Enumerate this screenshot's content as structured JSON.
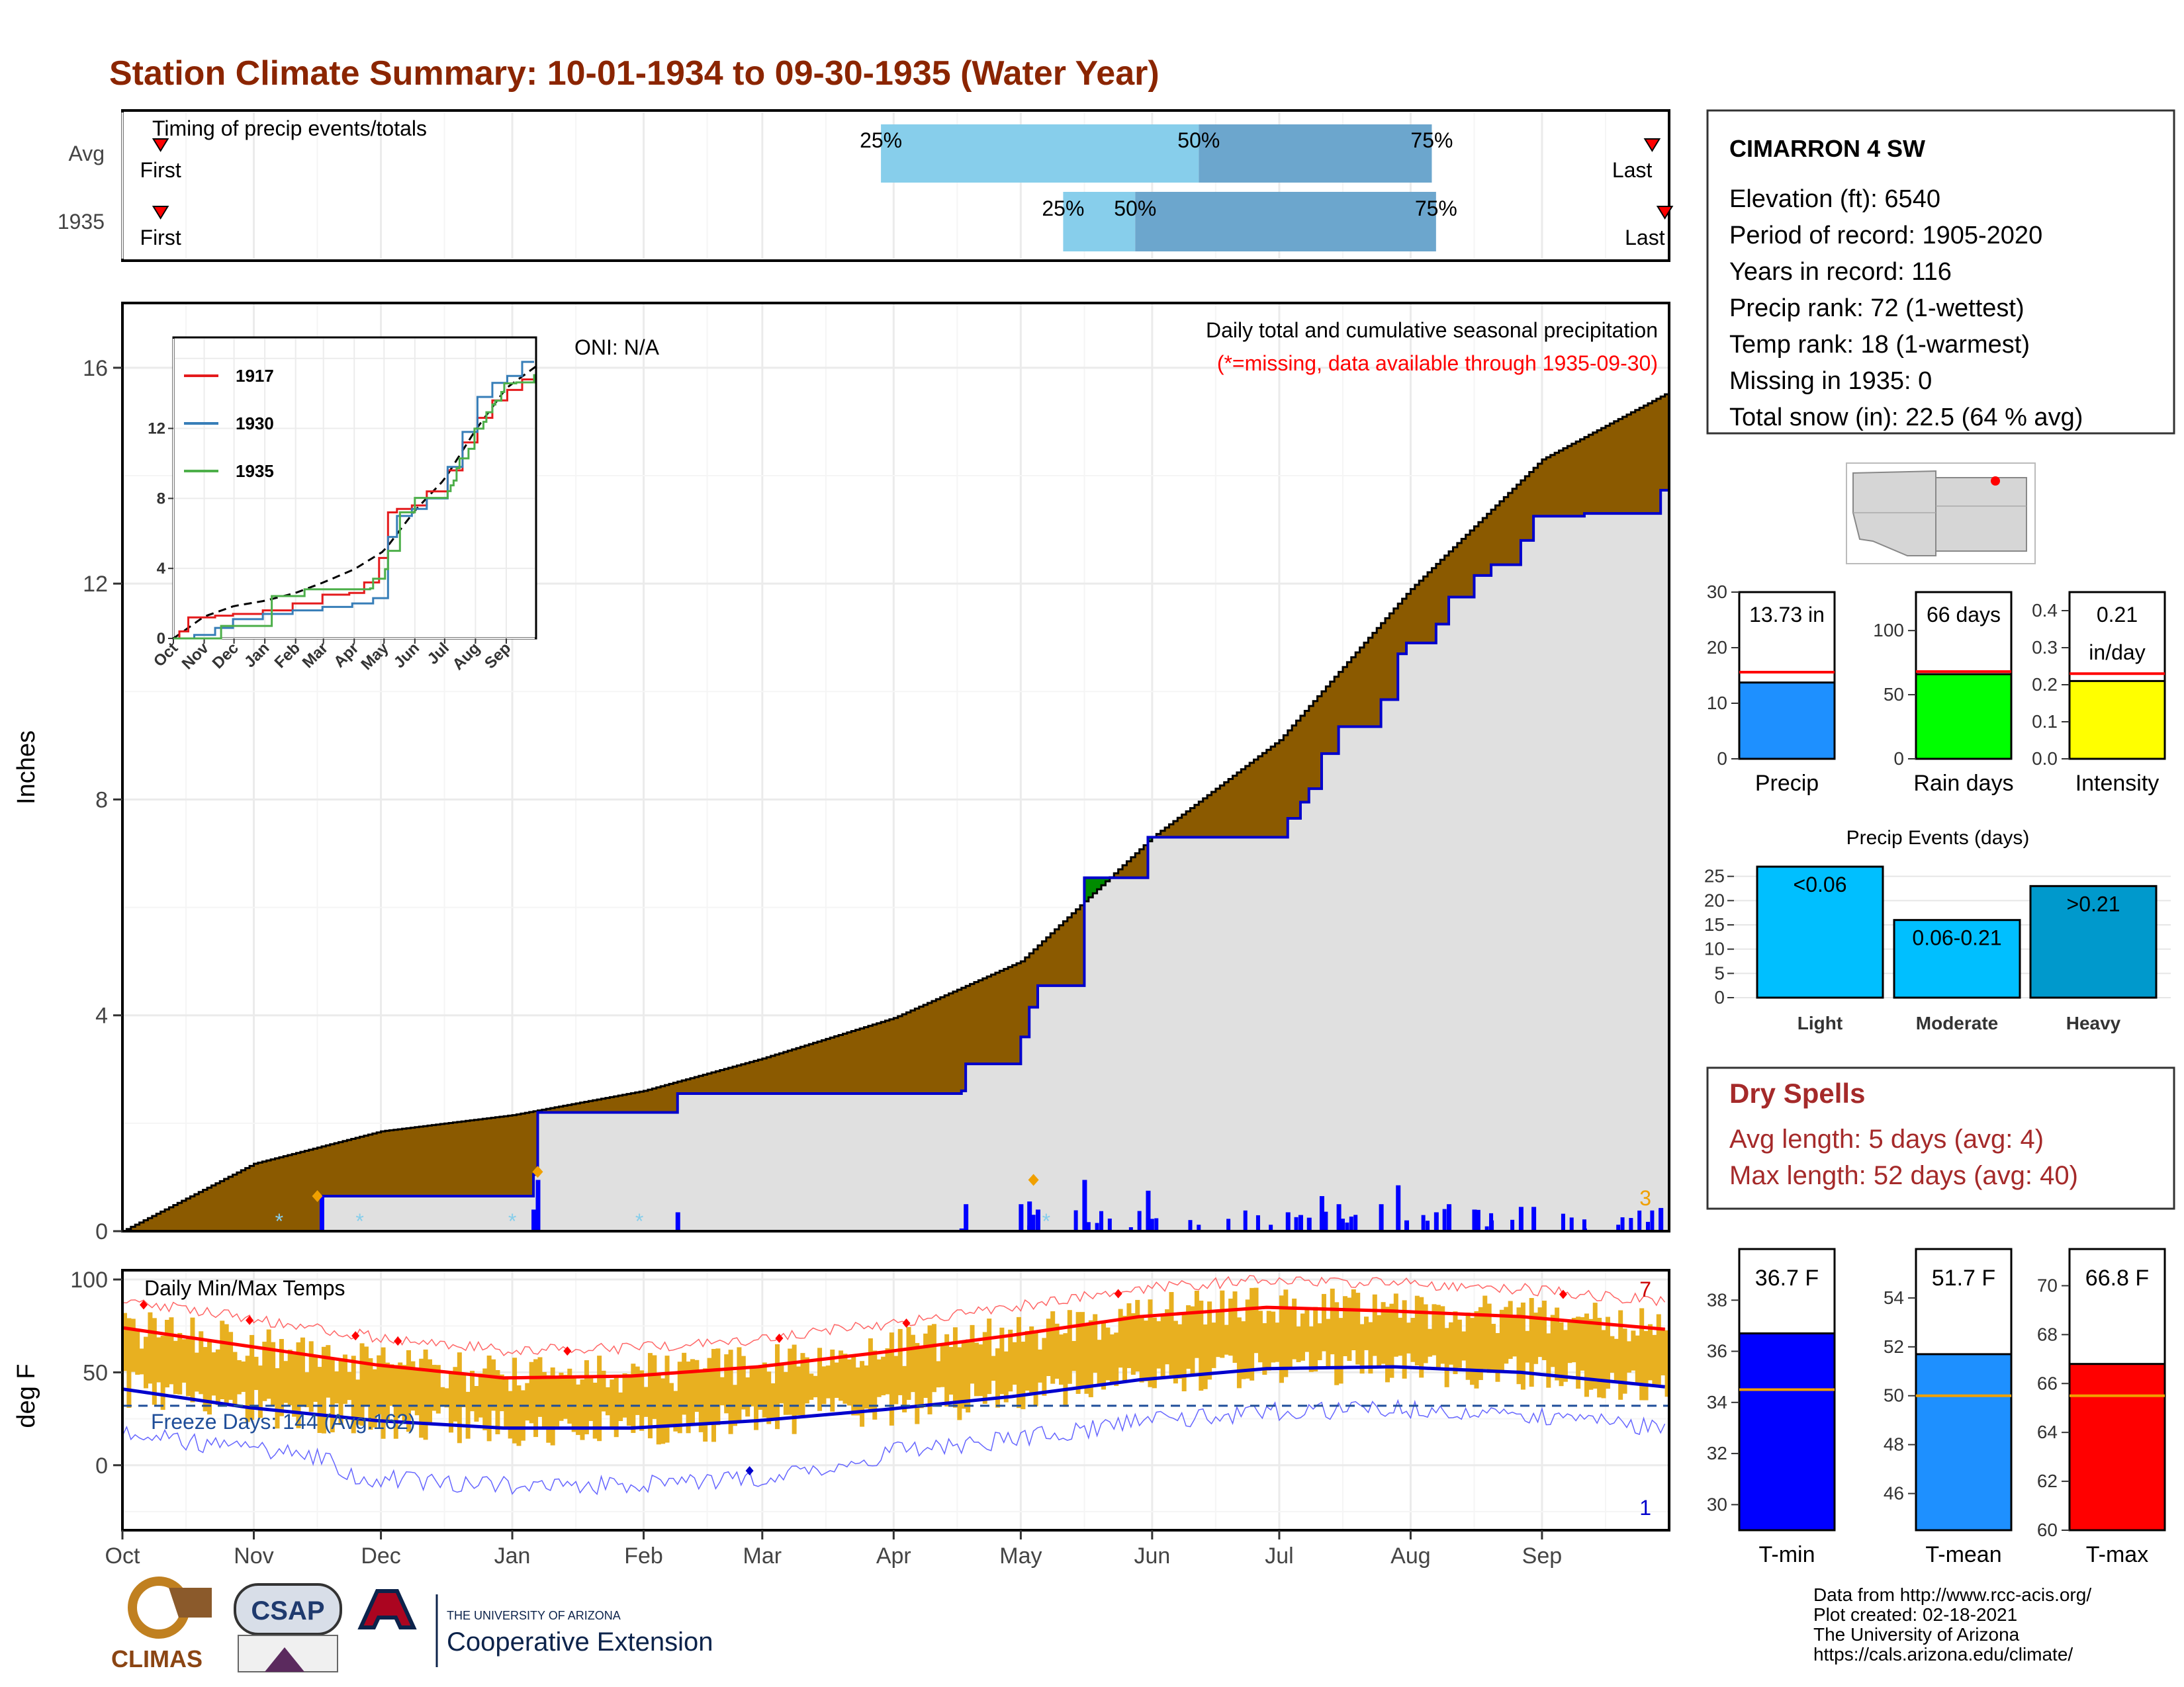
{
  "title": "Station Climate Summary: 10-01-1934 to 09-30-1935 (Water Year)",
  "colors": {
    "title": "#8B2500",
    "deficit_fill": "#8B5A00",
    "surplus_fill": "#008B00",
    "obs_fill": "#e0e0e0",
    "obs_line": "#0000cc",
    "daily_bar": "#0000ff",
    "temp_bar": "#E8B020",
    "tmax_avg": "#ff0000",
    "tmin_avg": "#0000cc",
    "timing_light": "#87CEEB",
    "timing_dark": "#6CA6CD"
  },
  "timing_panel": {
    "label": "Timing of precip events/totals",
    "rows": [
      {
        "name": "Avg",
        "first_label": "First",
        "last_label": "Last",
        "q25_label": "25%",
        "q50_label": "50%",
        "q75_label": "75%",
        "first": "Oct 10",
        "last": "Sep 27",
        "q25": "Mar 29",
        "q50": "Jun 12",
        "q75": "Aug 6"
      },
      {
        "name": "1935",
        "first_label": "First",
        "last_label": "Last",
        "q25_label": "25%",
        "q50_label": "50%",
        "q75_label": "75%",
        "first": "Oct 10",
        "last": "Sep 30",
        "q25": "May 11",
        "q50": "May 28",
        "q75": "Aug 7"
      }
    ]
  },
  "precip_panel": {
    "ylabel": "Inches",
    "oni": "ONI: N/A",
    "subtitle": "Daily total and cumulative seasonal precipitation",
    "missing_note": "(*=missing, data available through 1935-09-30)",
    "corner_count": "3",
    "yticks": [
      "0",
      "4",
      "8",
      "12",
      "16"
    ]
  },
  "inset": {
    "yticks": [
      "0",
      "4",
      "8",
      "12"
    ],
    "xticks": [
      "Oct",
      "Nov",
      "Dec",
      "Jan",
      "Feb",
      "Mar",
      "Apr",
      "May",
      "Jun",
      "Jul",
      "Aug",
      "Sep"
    ],
    "legend": [
      "1917",
      "1930",
      "1935"
    ]
  },
  "temp_panel": {
    "ylabel": "deg F",
    "label": "Daily Min/Max Temps",
    "freeze": "Freeze Days: 144 (Avg:162)",
    "count_top": "7",
    "count_bottom": "1",
    "yticks": [
      "0",
      "50",
      "100"
    ]
  },
  "months": [
    "Oct",
    "Nov",
    "Dec",
    "Jan",
    "Feb",
    "Mar",
    "Apr",
    "May",
    "Jun",
    "Jul",
    "Aug",
    "Sep"
  ],
  "station": {
    "name": "CIMARRON 4 SW",
    "lines": [
      "Elevation (ft): 6540",
      "Period of record: 1905-2020",
      "Years in record: 116",
      "Precip rank: 72 (1-wettest)",
      "Temp rank: 18 (1-warmest)",
      "Missing in 1935: 0",
      "Total snow (in): 22.5 (64 % avg)"
    ]
  },
  "gauges": [
    {
      "label": "Precip",
      "value_text": "13.73 in",
      "value": 13.73,
      "avg": 15.6,
      "ymax": 30,
      "ticks": [
        "0",
        "10",
        "20",
        "30"
      ],
      "color": "#1E90FF"
    },
    {
      "label": "Rain days",
      "value_text": "66 days",
      "value": 66,
      "avg": 68,
      "ymax": 130,
      "ticks": [
        "0",
        "50",
        "100"
      ],
      "color": "#00FF00"
    },
    {
      "label": "Intensity",
      "value_text": "0.21",
      "value_text2": "in/day",
      "value": 0.21,
      "avg": 0.23,
      "ymax": 0.45,
      "ticks": [
        "0.0",
        "0.1",
        "0.2",
        "0.3",
        "0.4"
      ],
      "color": "#FFFF00"
    }
  ],
  "events": {
    "title": "Precip Events (days)",
    "categories": [
      "Light",
      "Moderate",
      "Heavy"
    ],
    "bar_labels": [
      "<0.06",
      "0.06-0.21",
      ">0.21"
    ],
    "values": [
      27,
      16,
      23
    ],
    "yticks": [
      "0",
      "5",
      "10",
      "15",
      "20",
      "25"
    ],
    "color": "#00BFFF"
  },
  "dry_spells": {
    "title": "Dry Spells",
    "avg": "Avg length: 5 days (avg: 4)",
    "max": "Max length: 52 days (avg: 40)"
  },
  "temp_gauges": [
    {
      "label": "T-min",
      "value_text": "36.7 F",
      "value": 36.7,
      "avg": 34.5,
      "ymin": 29,
      "ymax": 40,
      "ticks": [
        "30",
        "32",
        "34",
        "36",
        "38"
      ],
      "color": "#0000FF"
    },
    {
      "label": "T-mean",
      "value_text": "51.7 F",
      "value": 51.7,
      "avg": 50.0,
      "ymin": 44.5,
      "ymax": 56,
      "ticks": [
        "46",
        "48",
        "50",
        "52",
        "54"
      ],
      "color": "#1E90FF"
    },
    {
      "label": "T-max",
      "value_text": "66.8 F",
      "value": 66.8,
      "avg": 65.5,
      "ymin": 60,
      "ymax": 71.5,
      "ticks": [
        "60",
        "62",
        "64",
        "66",
        "68",
        "70"
      ],
      "color": "#FF0000"
    }
  ],
  "footer": {
    "lines": [
      "Data from http://www.rcc-acis.org/",
      "Plot created: 02-18-2021",
      "The University of Arizona",
      "https://cals.arizona.edu/climate/"
    ],
    "logo_climas": "CLIMAS",
    "logo_csap": "CSAP",
    "ua_top": "THE UNIVERSITY OF ARIZONA",
    "ua_main": "Cooperative Extension"
  },
  "chart_data": [
    {
      "type": "area",
      "title": "Daily total and cumulative seasonal precipitation",
      "ylabel": "Inches",
      "ylim": [
        0,
        17.2
      ],
      "x_unit": "day of water year",
      "series": [
        {
          "name": "average cumulative",
          "x": [
            0,
            31,
            61,
            92,
            123,
            151,
            182,
            212,
            243,
            273,
            304,
            335,
            365
          ],
          "values": [
            0,
            1.25,
            1.85,
            2.15,
            2.6,
            3.2,
            3.95,
            5.0,
            7.3,
            9.1,
            11.9,
            14.3,
            15.55
          ]
        },
        {
          "name": "1935 cumulative",
          "x": [
            0,
            46,
            47,
            97,
            98,
            130,
            131,
            143,
            144,
            198,
            199,
            212,
            214,
            216,
            226,
            227,
            242,
            274,
            275,
            278,
            280,
            283,
            287,
            292,
            297,
            301,
            303,
            310,
            313,
            319,
            323,
            330,
            332,
            333,
            345,
            363,
            365
          ],
          "values": [
            0,
            0,
            0.65,
            1.05,
            2.2,
            2.2,
            2.55,
            2.55,
            2.55,
            2.6,
            3.1,
            3.6,
            4.15,
            4.55,
            4.55,
            6.55,
            7.3,
            7.3,
            7.65,
            7.95,
            8.2,
            8.85,
            9.35,
            9.35,
            9.85,
            10.7,
            10.9,
            11.25,
            11.75,
            12.15,
            12.35,
            12.8,
            12.8,
            13.25,
            13.3,
            13.73,
            13.73
          ]
        }
      ]
    },
    {
      "type": "line",
      "title": "Daily Min/Max Temps",
      "ylabel": "deg F",
      "ylim": [
        -35,
        105
      ],
      "series": [
        {
          "name": "avg max",
          "x": [
            0,
            30,
            60,
            90,
            120,
            150,
            180,
            210,
            240,
            270,
            300,
            330,
            365
          ],
          "values": [
            74,
            64,
            54,
            47,
            48,
            53,
            61,
            70,
            80,
            85,
            83,
            80,
            73
          ]
        },
        {
          "name": "avg min",
          "x": [
            0,
            30,
            60,
            90,
            120,
            150,
            180,
            210,
            240,
            270,
            300,
            330,
            365
          ],
          "values": [
            41,
            31,
            24,
            20,
            20,
            24,
            30,
            37,
            46,
            52,
            53,
            50,
            42
          ]
        }
      ]
    }
  ]
}
